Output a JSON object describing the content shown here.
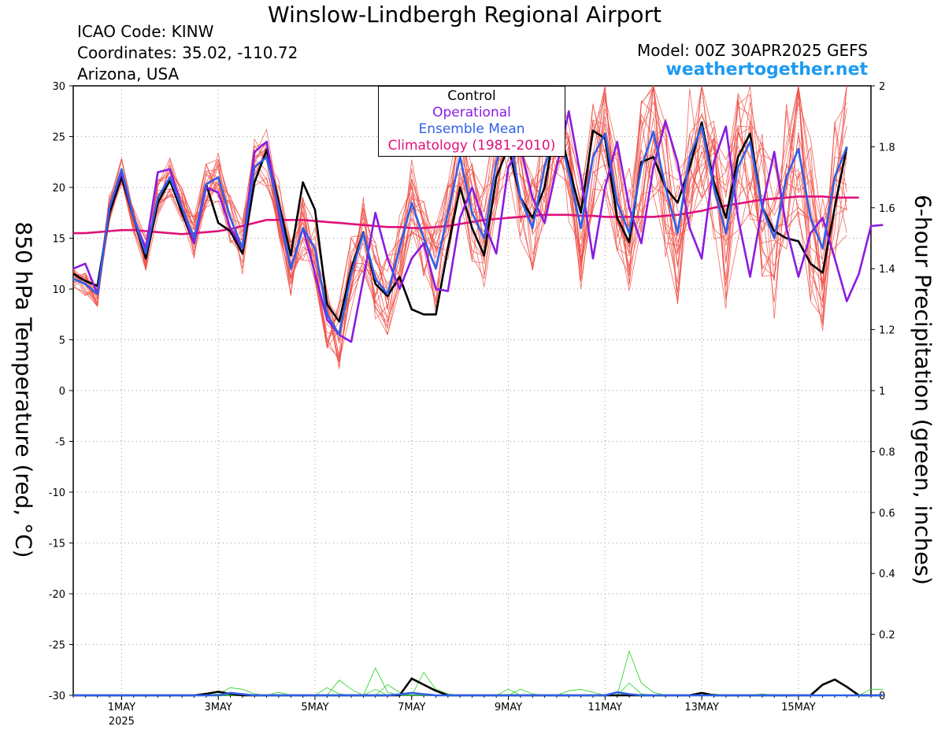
{
  "page": {
    "title": "Winslow-Lindbergh Regional Airport",
    "icao": "ICAO Code: KINW",
    "coords": "Coordinates: 35.02, -110.72",
    "region": "Arizona, USA",
    "model": "Model: 00Z 30APR2025 GEFS",
    "site": "weathertogether.net"
  },
  "chart_data": {
    "type": "line",
    "title": "Winslow-Lindbergh Regional Airport",
    "ylabel": "850 hPa Temperature (red, °C)",
    "ylabel_right": "6-hour Precipitation (green, inches)",
    "ylim": [
      -30,
      30
    ],
    "ylim_right": [
      0,
      2
    ],
    "yticks": [
      30,
      25,
      20,
      15,
      10,
      5,
      0,
      -5,
      -10,
      -15,
      -20,
      -25,
      -30
    ],
    "yticks_right": [
      "2",
      "1.8",
      "1.6",
      "1.4",
      "1.2",
      "1",
      "0.8",
      "0.6",
      "0.4",
      "0.2",
      "0"
    ],
    "x_unit": "days since 00Z 30APR2025 (6-hourly)",
    "xlim": [
      0,
      16.5
    ],
    "xticks": [
      {
        "x": 1,
        "label": "1MAY",
        "sub": "2025"
      },
      {
        "x": 3,
        "label": "3MAY",
        "sub": ""
      },
      {
        "x": 5,
        "label": "5MAY",
        "sub": ""
      },
      {
        "x": 7,
        "label": "7MAY",
        "sub": ""
      },
      {
        "x": 9,
        "label": "9MAY",
        "sub": ""
      },
      {
        "x": 11,
        "label": "11MAY",
        "sub": ""
      },
      {
        "x": 13,
        "label": "13MAY",
        "sub": ""
      },
      {
        "x": 15,
        "label": "15MAY",
        "sub": ""
      }
    ],
    "grid": true,
    "legend": {
      "position": "top-center",
      "entries": [
        {
          "label": "Control",
          "color": "#000000"
        },
        {
          "label": "Operational",
          "color": "#8a1be0"
        },
        {
          "label": "Ensemble Mean",
          "color": "#2f5fe8"
        },
        {
          "label": "Climatology (1981-2010)",
          "color": "#e0107a"
        }
      ]
    },
    "series": [
      {
        "name": "Control",
        "color": "#000000",
        "width": 2.6,
        "values": [
          11.5,
          10.8,
          10.3,
          17.5,
          21,
          17,
          13,
          18.5,
          20.7,
          17.5,
          14.5,
          20.3,
          16.5,
          15.7,
          13.5,
          20.5,
          23.7,
          18.5,
          13.3,
          20.5,
          17.8,
          8.5,
          6.8,
          12,
          15.6,
          10.5,
          9.3,
          11.2,
          8,
          7.5,
          7.5,
          14,
          20,
          16,
          13.3,
          21,
          24,
          19,
          17,
          20,
          27,
          22,
          17.5,
          25.6,
          24.8,
          17,
          14.6,
          22.5,
          23,
          20,
          18.5,
          22,
          26.4,
          20.5,
          17,
          23,
          25.3,
          18,
          15.7,
          15,
          14.7,
          12.5,
          11.6,
          18,
          24
        ]
      },
      {
        "name": "Operational",
        "color": "#8a1be0",
        "width": 2.6,
        "values": [
          12,
          12.5,
          9.5,
          18,
          21.5,
          17,
          14,
          21.5,
          21.8,
          18,
          14.5,
          20,
          19.5,
          16,
          14,
          23.5,
          24.5,
          17.5,
          12,
          16,
          11.5,
          7,
          5.5,
          4.8,
          11,
          17.5,
          13,
          10,
          13,
          14.5,
          10,
          9.8,
          17,
          20,
          16.5,
          13.5,
          22,
          24,
          19,
          16.5,
          22,
          27.5,
          21,
          13,
          20,
          24.5,
          18,
          14.5,
          22,
          26.5,
          22.5,
          16,
          13,
          22.5,
          26,
          17,
          11.2,
          18,
          23.5,
          16,
          11.2,
          15.5,
          17,
          13,
          8.8,
          11.5,
          16.2,
          16.3
        ]
      },
      {
        "name": "Ensemble Mean",
        "color": "#2f5fe8",
        "width": 2.6,
        "values": [
          11,
          10.5,
          9.5,
          18,
          21.8,
          17,
          13.5,
          19,
          21,
          18,
          15,
          20.3,
          21,
          17,
          14,
          22,
          23,
          18,
          12,
          16,
          14,
          7.5,
          5.5,
          11.5,
          15.5,
          11,
          9.5,
          14,
          18.5,
          15,
          12,
          17.5,
          23,
          17.5,
          15,
          22.5,
          25.5,
          19,
          16,
          22,
          26,
          21.5,
          16,
          23,
          25.3,
          18.5,
          15.5,
          22,
          25.5,
          20,
          15.5,
          23,
          26,
          20,
          15.5,
          22,
          24.5,
          18,
          15,
          21,
          23.8,
          17,
          14,
          21,
          24
        ]
      },
      {
        "name": "Climatology (1981-2010)",
        "color": "#e0107a",
        "width": 2.6,
        "values": [
          15.5,
          15.5,
          15.6,
          15.7,
          15.8,
          15.8,
          15.7,
          15.6,
          15.5,
          15.4,
          15.5,
          15.6,
          15.7,
          15.9,
          16.2,
          16.5,
          16.8,
          16.8,
          16.8,
          16.8,
          16.7,
          16.6,
          16.5,
          16.4,
          16.3,
          16.2,
          16.1,
          16.1,
          16,
          16,
          16.1,
          16.2,
          16.4,
          16.6,
          16.8,
          16.9,
          17,
          17.1,
          17.2,
          17.3,
          17.3,
          17.3,
          17.2,
          17.2,
          17.1,
          17.1,
          17.1,
          17.1,
          17.1,
          17.2,
          17.3,
          17.5,
          17.7,
          18,
          18.2,
          18.4,
          18.6,
          18.8,
          18.9,
          19,
          19.1,
          19.1,
          19.1,
          19,
          19,
          19
        ]
      }
    ],
    "precip_series": [
      {
        "name": "Control",
        "color": "#000000",
        "width": 2.6,
        "values": [
          0,
          0,
          0,
          0,
          0,
          0,
          0,
          0,
          0,
          0,
          0,
          0.005,
          0.012,
          0.005,
          0,
          0,
          0,
          0,
          0,
          0,
          0,
          0,
          0,
          0,
          0,
          0,
          0,
          0,
          0.055,
          0.035,
          0.015,
          0,
          0,
          0,
          0,
          0,
          0,
          0,
          0,
          0,
          0,
          0,
          0,
          0,
          0,
          0,
          0,
          0,
          0,
          0,
          0,
          0,
          0.008,
          0,
          0,
          0,
          0,
          0,
          0,
          0,
          0,
          0,
          0.035,
          0.052,
          0.028,
          0,
          0,
          0
        ]
      },
      {
        "name": "Ensemble Mean",
        "color": "#2f5fe8",
        "width": 2.6,
        "values": [
          0,
          0,
          0,
          0,
          0,
          0,
          0,
          0,
          0,
          0,
          0,
          0,
          0,
          0.008,
          0.004,
          0,
          0,
          0,
          0,
          0,
          0,
          0,
          0,
          0,
          0,
          0,
          0,
          0.003,
          0.008,
          0.004,
          0,
          0,
          0,
          0,
          0,
          0,
          0,
          0,
          0,
          0,
          0,
          0,
          0,
          0,
          0,
          0.01,
          0.004,
          0,
          0,
          0,
          0,
          0,
          0,
          0,
          0,
          0,
          0,
          0,
          0,
          0,
          0,
          0,
          0,
          0,
          0,
          0,
          0,
          0
        ]
      }
    ],
    "precip_members": [
      [
        0,
        0,
        0,
        0,
        0,
        0,
        0,
        0,
        0,
        0,
        0,
        0,
        0.005,
        0.025,
        0.02,
        0.005,
        0,
        0,
        0,
        0,
        0,
        0,
        0,
        0,
        0,
        0,
        0.035,
        0.01,
        0,
        0,
        0,
        0,
        0,
        0,
        0,
        0,
        0,
        0,
        0,
        0,
        0,
        0,
        0,
        0,
        0,
        0,
        0,
        0,
        0,
        0,
        0,
        0,
        0,
        0.005,
        0,
        0,
        0,
        0,
        0,
        0,
        0,
        0,
        0,
        0,
        0,
        0,
        0,
        0
      ],
      [
        0,
        0,
        0,
        0,
        0,
        0,
        0,
        0,
        0,
        0,
        0,
        0,
        0,
        0.01,
        0,
        0,
        0,
        0,
        0,
        0,
        0,
        0,
        0,
        0,
        0,
        0,
        0,
        0,
        0,
        0,
        0,
        0,
        0,
        0,
        0,
        0,
        0,
        0,
        0,
        0,
        0,
        0,
        0,
        0,
        0,
        0,
        0.145,
        0.04,
        0.01,
        0,
        0,
        0,
        0,
        0,
        0,
        0,
        0,
        0,
        0,
        0,
        0,
        0,
        0,
        0,
        0,
        0,
        0.02,
        0.02
      ],
      [
        0,
        0,
        0,
        0,
        0,
        0,
        0,
        0,
        0,
        0,
        0,
        0,
        0,
        0,
        0,
        0,
        0,
        0,
        0,
        0,
        0,
        0,
        0,
        0,
        0,
        0.09,
        0.01,
        0,
        0,
        0,
        0,
        0,
        0,
        0,
        0,
        0,
        0,
        0,
        0,
        0,
        0,
        0,
        0,
        0,
        0,
        0,
        0,
        0,
        0,
        0,
        0,
        0,
        0,
        0,
        0,
        0,
        0,
        0,
        0,
        0,
        0,
        0,
        0,
        0,
        0,
        0,
        0,
        0
      ],
      [
        0,
        0,
        0,
        0,
        0,
        0,
        0,
        0,
        0,
        0,
        0,
        0,
        0,
        0,
        0,
        0,
        0,
        0,
        0,
        0,
        0,
        0,
        0,
        0,
        0,
        0,
        0,
        0,
        0,
        0.075,
        0.02,
        0.005,
        0,
        0,
        0,
        0,
        0,
        0,
        0,
        0,
        0,
        0.015,
        0.02,
        0.01,
        0,
        0,
        0.04,
        0.005,
        0,
        0,
        0,
        0,
        0,
        0,
        0,
        0,
        0,
        0,
        0,
        0,
        0,
        0,
        0,
        0,
        0,
        0,
        0,
        0
      ],
      [
        0,
        0,
        0,
        0,
        0,
        0,
        0,
        0,
        0,
        0,
        0,
        0,
        0,
        0,
        0,
        0,
        0,
        0.01,
        0,
        0,
        0,
        0,
        0.05,
        0.02,
        0,
        0.02,
        0,
        0,
        0,
        0,
        0,
        0,
        0,
        0,
        0,
        0,
        0,
        0.02,
        0.005,
        0,
        0,
        0,
        0,
        0,
        0,
        0,
        0,
        0,
        0,
        0,
        0,
        0,
        0,
        0,
        0,
        0,
        0,
        0.005,
        0,
        0,
        0,
        0,
        0,
        0,
        0,
        0,
        0,
        0
      ],
      [
        0,
        0,
        0,
        0,
        0,
        0,
        0,
        0,
        0,
        0,
        0,
        0,
        0,
        0,
        0,
        0,
        0,
        0,
        0,
        0,
        0,
        0.025,
        0.005,
        0,
        0,
        0,
        0,
        0,
        0,
        0,
        0,
        0,
        0,
        0,
        0,
        0,
        0.02,
        0,
        0,
        0,
        0,
        0,
        0,
        0,
        0,
        0,
        0,
        0,
        0,
        0,
        0,
        0,
        0,
        0,
        0,
        0,
        0,
        0,
        0,
        0,
        0,
        0,
        0,
        0,
        0,
        0,
        0,
        0
      ]
    ]
  }
}
